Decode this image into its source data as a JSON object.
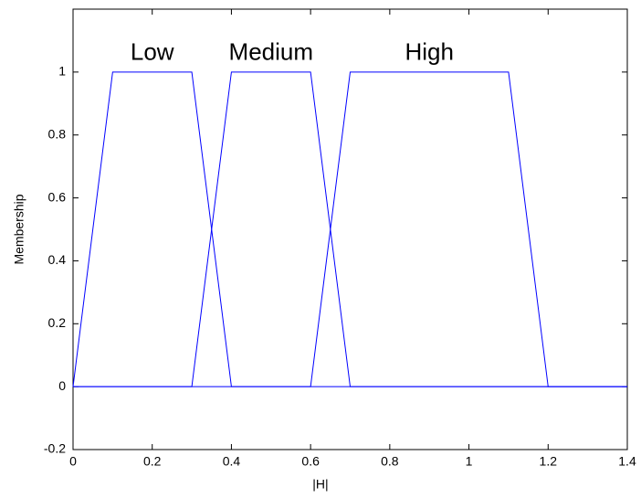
{
  "chart_data": {
    "type": "line",
    "x_label": "|H|",
    "y_label": "Membership",
    "xlim": [
      0,
      1.4
    ],
    "ylim": [
      -0.2,
      1.2
    ],
    "xticks": [
      0,
      0.2,
      0.4,
      0.6,
      0.8,
      1,
      1.2,
      1.4
    ],
    "yticks": [
      -0.2,
      0,
      0.2,
      0.4,
      0.6,
      0.8,
      1
    ],
    "series": [
      {
        "name": "Low",
        "color": "#0000ff",
        "x": [
          0,
          0.1,
          0.3,
          0.4,
          1.4
        ],
        "values": [
          0,
          1,
          1,
          0,
          0
        ]
      },
      {
        "name": "Medium",
        "color": "#0000ff",
        "x": [
          0,
          0.3,
          0.4,
          0.6,
          0.7,
          1.4
        ],
        "values": [
          0,
          0,
          1,
          1,
          0,
          0
        ]
      },
      {
        "name": "High",
        "color": "#0000ff",
        "x": [
          0,
          0.6,
          0.7,
          1.1,
          1.2,
          1.4
        ],
        "values": [
          0,
          0,
          1,
          1,
          0,
          0
        ]
      }
    ]
  }
}
